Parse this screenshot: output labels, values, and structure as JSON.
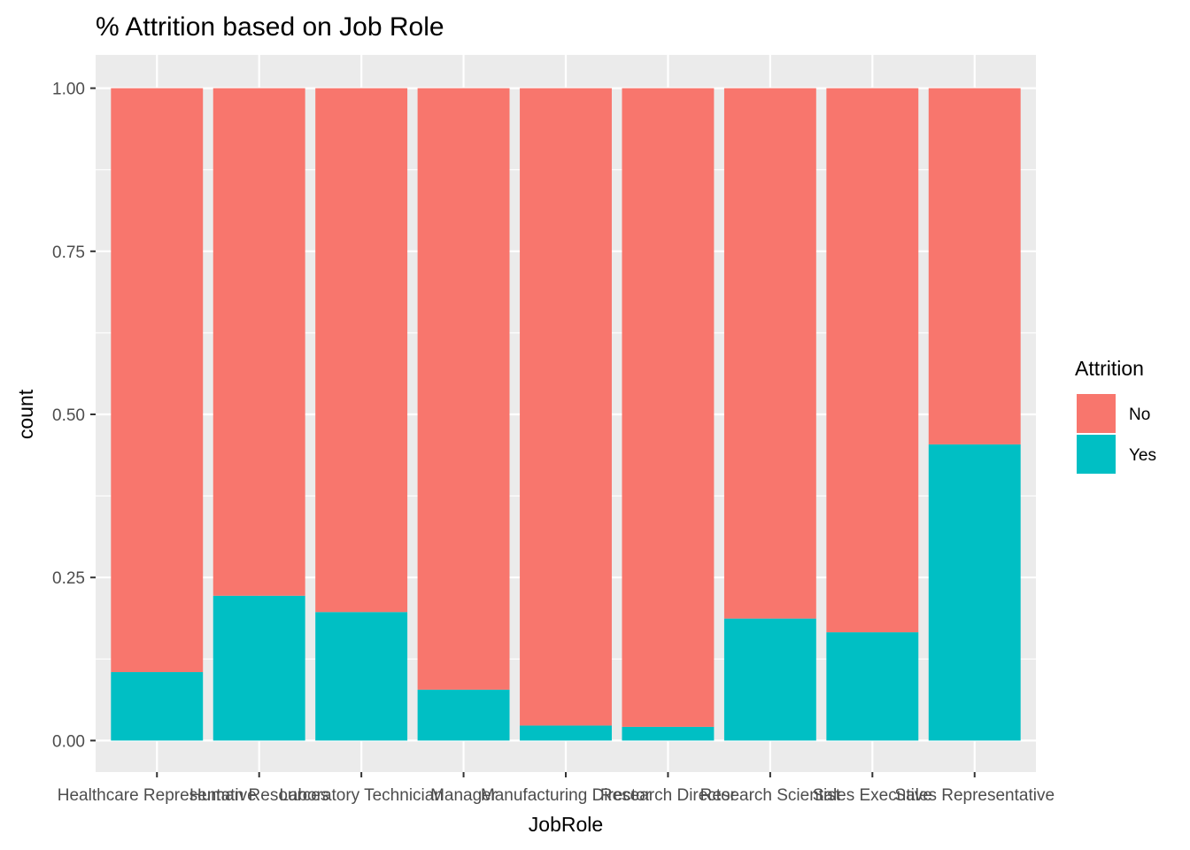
{
  "chart_data": {
    "type": "bar",
    "stacked": true,
    "position": "fill",
    "title": "% Attrition based on Job Role",
    "xlabel": "JobRole",
    "ylabel": "count",
    "ylim": [
      0,
      1.0
    ],
    "yticks": [
      "0.00",
      "0.25",
      "0.50",
      "0.75",
      "1.00"
    ],
    "ytick_values": [
      0,
      0.25,
      0.5,
      0.75,
      1.0
    ],
    "grid": true,
    "categories": [
      "Healthcare Representative",
      "Human Resources",
      "Laboratory Technician",
      "Manager",
      "Manufacturing Director",
      "Research Director",
      "Research Scientist",
      "Sales Executive",
      "Sales Representative"
    ],
    "series": [
      {
        "name": "No",
        "color": "#F8766D",
        "values": [
          0.895,
          0.778,
          0.803,
          0.922,
          0.977,
          0.979,
          0.813,
          0.834,
          0.546
        ]
      },
      {
        "name": "Yes",
        "color": "#00BFC4",
        "values": [
          0.105,
          0.222,
          0.197,
          0.078,
          0.023,
          0.021,
          0.187,
          0.166,
          0.454
        ]
      }
    ],
    "legend": {
      "title": "Attrition",
      "placement": "right",
      "entries": [
        "No",
        "Yes"
      ]
    },
    "panel_background": "#EBEBEB",
    "grid_color": "#FFFFFF"
  }
}
